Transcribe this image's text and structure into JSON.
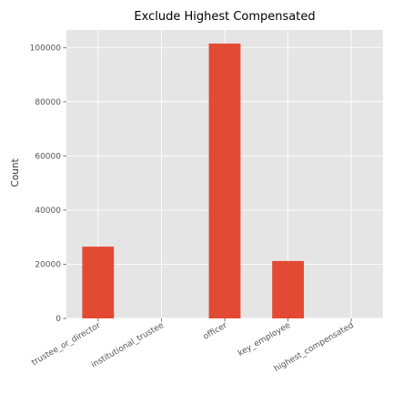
{
  "chart_data": {
    "type": "bar",
    "title": "Exclude Highest Compensated",
    "xlabel": "",
    "ylabel": "Count",
    "categories": [
      "trustee_or_director",
      "institutional_trustee",
      "officer",
      "key_employee",
      "highest_compensated"
    ],
    "values": [
      26500,
      0,
      101500,
      21200,
      0
    ],
    "ylim": [
      0,
      106500
    ],
    "yticks": [
      0,
      20000,
      40000,
      60000,
      80000,
      100000
    ],
    "grid": true,
    "colors": {
      "bar": "#E24A33",
      "panel": "#E5E5E5",
      "grid": "#FFFFFF"
    }
  }
}
